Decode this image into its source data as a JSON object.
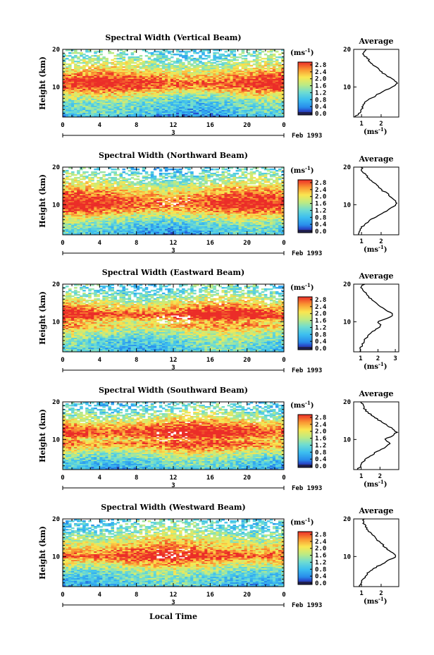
{
  "page": {
    "xlabel": "Local Time",
    "date_label": "Feb 1993",
    "day_label": "3",
    "avg_title": "Average",
    "colorbar_unit": "(ms",
    "unit_exp": "-1",
    "unit_close": ")",
    "ylabel": "Height (km)"
  },
  "chart_data": [
    {
      "type": "heatmap",
      "title": "Spectral Width (Vertical Beam)",
      "x_ticks": [
        "0",
        "4",
        "8",
        "12",
        "16",
        "20",
        "0"
      ],
      "y_ticks": [
        "20",
        "10"
      ],
      "xlim": [
        0,
        24
      ],
      "ylim": [
        2,
        20
      ],
      "colorbar_ticks": [
        "2.8",
        "2.4",
        "2.0",
        "1.6",
        "1.2",
        "0.8",
        "0.4",
        "0.0"
      ],
      "profile_ticks": [
        "1",
        "2"
      ],
      "profile_xlim": [
        0.6,
        2.9
      ],
      "profile": [
        [
          2,
          0.6
        ],
        [
          3,
          0.9
        ],
        [
          4,
          1.0
        ],
        [
          5,
          1.1
        ],
        [
          6,
          1.2
        ],
        [
          7,
          1.5
        ],
        [
          8,
          1.8
        ],
        [
          9,
          2.2
        ],
        [
          10,
          2.6
        ],
        [
          11,
          2.8
        ],
        [
          12,
          2.6
        ],
        [
          13,
          2.3
        ],
        [
          14,
          2.0
        ],
        [
          15,
          1.8
        ],
        [
          16,
          1.6
        ],
        [
          17,
          1.4
        ],
        [
          18,
          1.2
        ],
        [
          19,
          1.1
        ],
        [
          20,
          1.2
        ]
      ]
    },
    {
      "type": "heatmap",
      "title": "Spectral Width (Northward Beam)",
      "x_ticks": [
        "0",
        "4",
        "8",
        "12",
        "16",
        "20",
        "0"
      ],
      "y_ticks": [
        "20",
        "10"
      ],
      "xlim": [
        0,
        24
      ],
      "ylim": [
        2,
        20
      ],
      "colorbar_ticks": [
        "2.8",
        "2.4",
        "2.0",
        "1.6",
        "1.2",
        "0.8",
        "0.4",
        "0.0"
      ],
      "profile_ticks": [
        "1",
        "2"
      ],
      "profile_xlim": [
        0.6,
        2.9
      ],
      "profile": [
        [
          2,
          0.8
        ],
        [
          3,
          0.9
        ],
        [
          4,
          1.0
        ],
        [
          5,
          1.2
        ],
        [
          6,
          1.5
        ],
        [
          7,
          1.8
        ],
        [
          8,
          2.2
        ],
        [
          9,
          2.5
        ],
        [
          10,
          2.8
        ],
        [
          11,
          2.7
        ],
        [
          12,
          2.5
        ],
        [
          13,
          2.3
        ],
        [
          14,
          2.0
        ],
        [
          15,
          1.8
        ],
        [
          16,
          1.6
        ],
        [
          17,
          1.4
        ],
        [
          18,
          1.2
        ],
        [
          19,
          1.0
        ],
        [
          20,
          1.0
        ]
      ]
    },
    {
      "type": "heatmap",
      "title": "Spectral Width (Eastward Beam)",
      "x_ticks": [
        "0",
        "4",
        "8",
        "12",
        "16",
        "20",
        "0"
      ],
      "y_ticks": [
        "20",
        "10"
      ],
      "xlim": [
        0,
        24
      ],
      "ylim": [
        2,
        20
      ],
      "colorbar_ticks": [
        "2.8",
        "2.4",
        "2.0",
        "1.6",
        "1.2",
        "0.8",
        "0.4",
        "0.0"
      ],
      "profile_ticks": [
        "1",
        "2",
        "3"
      ],
      "profile_xlim": [
        0.6,
        3.2
      ],
      "profile": [
        [
          2,
          1.0
        ],
        [
          3,
          1.0
        ],
        [
          4,
          1.1
        ],
        [
          5,
          1.2
        ],
        [
          6,
          1.4
        ],
        [
          7,
          1.6
        ],
        [
          8,
          1.9
        ],
        [
          9,
          2.2
        ],
        [
          10,
          2.0
        ],
        [
          11,
          2.6
        ],
        [
          12,
          2.9
        ],
        [
          13,
          2.5
        ],
        [
          14,
          2.2
        ],
        [
          15,
          1.9
        ],
        [
          16,
          1.6
        ],
        [
          17,
          1.4
        ],
        [
          18,
          1.2
        ],
        [
          19,
          1.0
        ],
        [
          20,
          1.2
        ]
      ]
    },
    {
      "type": "heatmap",
      "title": "Spectral Width (Southward Beam)",
      "x_ticks": [
        "0",
        "4",
        "8",
        "12",
        "16",
        "20",
        "0"
      ],
      "y_ticks": [
        "20",
        "10"
      ],
      "xlim": [
        0,
        24
      ],
      "ylim": [
        2,
        20
      ],
      "colorbar_ticks": [
        "2.8",
        "2.4",
        "2.0",
        "1.6",
        "1.2",
        "0.8",
        "0.4",
        "0.0"
      ],
      "profile_ticks": [
        "1",
        "2"
      ],
      "profile_xlim": [
        0.6,
        3.0
      ],
      "profile": [
        [
          2,
          0.8
        ],
        [
          3,
          1.0
        ],
        [
          4,
          1.1
        ],
        [
          5,
          1.3
        ],
        [
          6,
          1.6
        ],
        [
          7,
          1.9
        ],
        [
          8,
          2.3
        ],
        [
          9,
          2.6
        ],
        [
          10,
          2.2
        ],
        [
          11,
          2.7
        ],
        [
          12,
          2.9
        ],
        [
          13,
          2.6
        ],
        [
          14,
          2.3
        ],
        [
          15,
          2.0
        ],
        [
          16,
          1.7
        ],
        [
          17,
          1.4
        ],
        [
          18,
          1.2
        ],
        [
          19,
          1.1
        ],
        [
          20,
          1.0
        ]
      ]
    },
    {
      "type": "heatmap",
      "title": "Spectral Width (Westward Beam)",
      "x_ticks": [
        "0",
        "4",
        "8",
        "12",
        "16",
        "20",
        "0"
      ],
      "y_ticks": [
        "20",
        "10"
      ],
      "xlim": [
        0,
        24
      ],
      "ylim": [
        2,
        20
      ],
      "colorbar_ticks": [
        "2.8",
        "2.4",
        "2.0",
        "1.6",
        "1.2",
        "0.8",
        "0.4",
        "0.0"
      ],
      "profile_ticks": [
        "1",
        "2"
      ],
      "profile_xlim": [
        0.6,
        2.9
      ],
      "profile": [
        [
          2,
          0.9
        ],
        [
          3,
          1.0
        ],
        [
          4,
          1.1
        ],
        [
          5,
          1.2
        ],
        [
          6,
          1.4
        ],
        [
          7,
          1.7
        ],
        [
          8,
          2.0
        ],
        [
          9,
          2.4
        ],
        [
          10,
          2.8
        ],
        [
          11,
          2.6
        ],
        [
          12,
          2.3
        ],
        [
          13,
          2.1
        ],
        [
          14,
          1.9
        ],
        [
          15,
          1.7
        ],
        [
          16,
          1.5
        ],
        [
          17,
          1.3
        ],
        [
          18,
          1.2
        ],
        [
          19,
          1.1
        ],
        [
          20,
          1.1
        ]
      ]
    }
  ]
}
